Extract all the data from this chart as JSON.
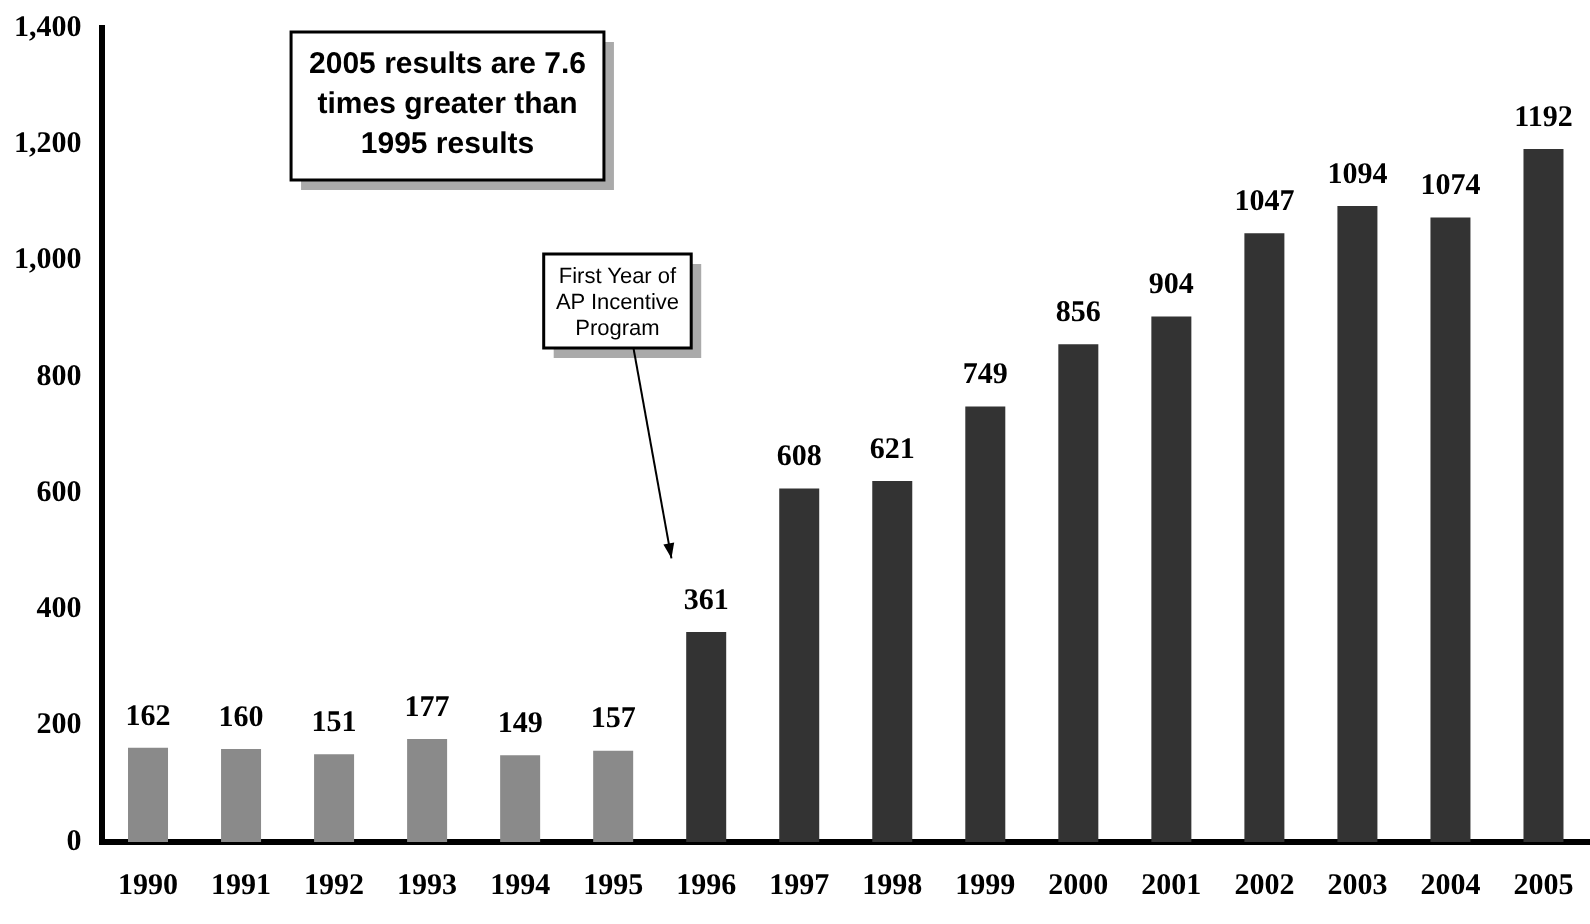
{
  "chart_data": {
    "type": "bar",
    "categories": [
      "1990",
      "1991",
      "1992",
      "1993",
      "1994",
      "1995",
      "1996",
      "1997",
      "1998",
      "1999",
      "2000",
      "2001",
      "2002",
      "2003",
      "2004",
      "2005"
    ],
    "values": [
      162,
      160,
      151,
      177,
      149,
      157,
      361,
      608,
      621,
      749,
      856,
      904,
      1047,
      1094,
      1074,
      1192
    ],
    "colors": [
      "#8a8a8a",
      "#8a8a8a",
      "#8a8a8a",
      "#8a8a8a",
      "#8a8a8a",
      "#8a8a8a",
      "#333333",
      "#333333",
      "#333333",
      "#333333",
      "#333333",
      "#333333",
      "#333333",
      "#333333",
      "#333333",
      "#333333"
    ],
    "ylim": [
      0,
      1400
    ],
    "yticks": [
      0,
      {
        "value": 200,
        "label": "200"
      },
      {
        "value": 400,
        "label": "400"
      },
      {
        "value": 600,
        "label": "600"
      },
      {
        "value": 800,
        "label": "800"
      },
      {
        "value": 1000,
        "label": "1,000"
      },
      {
        "value": 1200,
        "label": "1,200"
      },
      {
        "value": 1400,
        "label": "1,400"
      }
    ],
    "grid": false,
    "legend": false,
    "data_labels": true,
    "annotations": [
      "2005 results are 7.6 times greater than 1995 results",
      "First Year of AP Incentive Program"
    ]
  }
}
